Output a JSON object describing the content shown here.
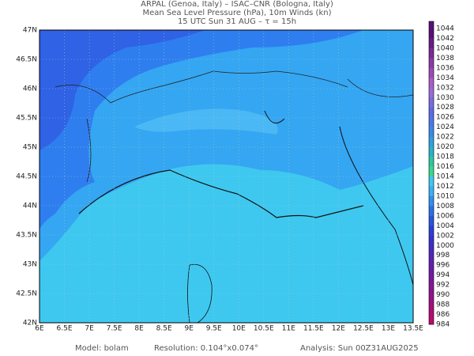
{
  "header": {
    "lines": [
      "ARPAL (Genoa, Italy)  –  ISAC–CNR (Bologna, Italy)",
      "Mean Sea Level Pressure (hPa), 10m Winds (kn)",
      "15 UTC Sun 31 AUG  –  τ = 15h"
    ]
  },
  "map": {
    "lon_labels": [
      "6E",
      "6.5E",
      "7E",
      "7.5E",
      "8E",
      "8.5E",
      "9E",
      "9.5E",
      "10E",
      "10.5E",
      "11E",
      "11.5E",
      "12E",
      "12.5E",
      "13E",
      "13.5E"
    ],
    "lat_labels": [
      "47N",
      "46.5N",
      "46N",
      "45.5N",
      "45N",
      "44.5N",
      "44N",
      "43.5N",
      "43N",
      "42.5N",
      "42N"
    ]
  },
  "colorbar": {
    "levels": [
      "1044",
      "1042",
      "1040",
      "1038",
      "1036",
      "1034",
      "1032",
      "1030",
      "1028",
      "1026",
      "1024",
      "1022",
      "1020",
      "1018",
      "1016",
      "1014",
      "1012",
      "1010",
      "1008",
      "1006",
      "1004",
      "1002",
      "1000",
      "998",
      "996",
      "994",
      "992",
      "990",
      "988",
      "986",
      "984"
    ],
    "colors": [
      "#5b0f78",
      "#6a1c88",
      "#7a2a98",
      "#8a3aa8",
      "#9a4ab8",
      "#a95cc8",
      "#9a6ad8",
      "#7c6ae0",
      "#5e6ae6",
      "#4a7ae8",
      "#3a8ae8",
      "#2fa0e0",
      "#28b4c8",
      "#2cc8a0",
      "#38d890",
      "#3ec8f0",
      "#38b0f4",
      "#3090f0",
      "#2c70e8",
      "#2a55e0",
      "#2a40d8",
      "#3a30cc",
      "#4a28c0",
      "#5a22b4",
      "#6a1ca8",
      "#7a189c",
      "#8a1490",
      "#9a1084",
      "#aa0c78",
      "#ba0a6c"
    ]
  },
  "footer": {
    "model": "Model: bolam",
    "resolution": "Resolution: 0.104°x0.074°",
    "analysis": "Analysis: Sun 00Z31AUG2025"
  }
}
